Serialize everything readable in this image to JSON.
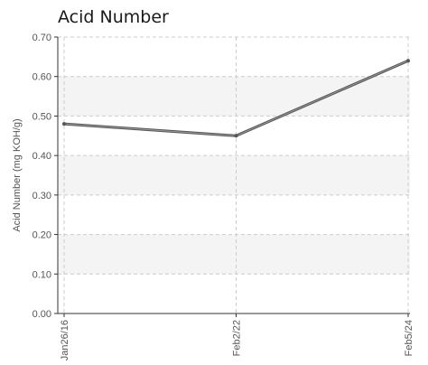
{
  "chart_data": {
    "type": "line",
    "title": "Acid Number",
    "ylabel": "Acid Number (mg KOH/g)",
    "xlabel": "",
    "categories": [
      "Jan26/16",
      "Feb2/22",
      "Feb5/24"
    ],
    "y_ticks": [
      "0.00",
      "0.10",
      "0.20",
      "0.30",
      "0.40",
      "0.50",
      "0.60",
      "0.70"
    ],
    "ylim": [
      0,
      0.7
    ],
    "series": [
      {
        "values": [
          0.48,
          0.45,
          0.64
        ]
      }
    ],
    "grid": true,
    "legend": "none",
    "colors": {
      "line": "#555555",
      "band": "#f4f4f4",
      "grid": "#cccccc",
      "axis": "#333333"
    }
  }
}
